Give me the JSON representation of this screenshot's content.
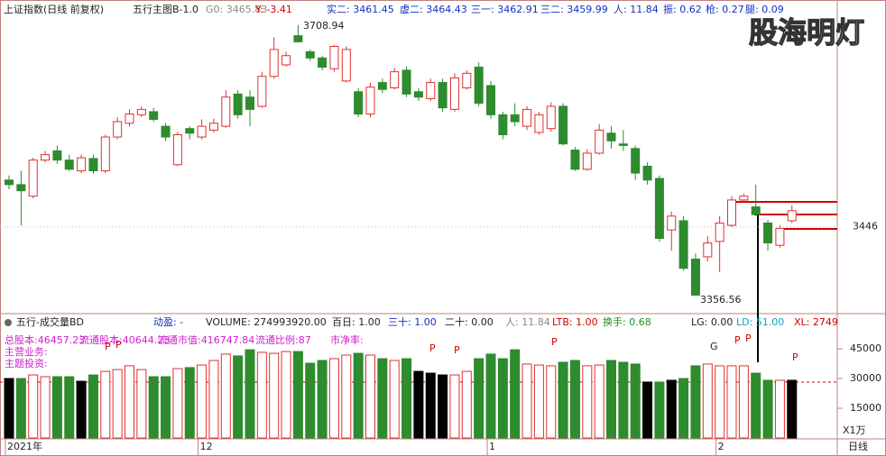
{
  "header": {
    "title": "上证指数(日线 前复权)",
    "indicator": "五行主图B-1.0",
    "fields": [
      "G0: 3465.83",
      "Y: -3.41",
      "实二: 3461.45",
      "虚二: 3464.43",
      "三一: 3462.91",
      "三二: 3459.99",
      "人: 11.84",
      "振: 0.62",
      "枪: 0.27",
      "腿: 0.09"
    ]
  },
  "watermark": "股海明灯",
  "volume_header": {
    "title": "五行-成交量BD",
    "fields": [
      "动盈: -",
      "VOLUME: 274993920.00",
      "百日: 1.00",
      "三十: 1.00",
      "二十: 0.00",
      "人: 11.84",
      "LTB: 1.00",
      "换手: 0.68",
      "LG: 0.00",
      "LD: 51.00",
      "XL: 2749"
    ]
  },
  "stock_info": [
    "总股本:46457.23",
    "流通股本:40644.23",
    "流通市值:416747.84",
    "流通比例:87",
    "市净率:",
    "主营业务:",
    "主题投资:"
  ],
  "markers": [
    "P",
    "P",
    "P",
    "P",
    "P",
    "G",
    "P",
    "P",
    "P"
  ],
  "period_label": "日线",
  "chart_data": [
    {
      "type": "candlestick",
      "annotations": [
        "3708.94",
        "3356.56"
      ],
      "categories": [
        "2021年",
        null,
        null,
        null,
        null,
        null,
        null,
        null,
        null,
        null,
        null,
        null,
        null,
        null,
        null,
        null,
        "12",
        null,
        null,
        null,
        null,
        null,
        null,
        null,
        null,
        null,
        null,
        null,
        null,
        null,
        null,
        null,
        null,
        null,
        null,
        null,
        null,
        null,
        null,
        null,
        "1",
        null,
        null,
        null,
        null,
        null,
        null,
        null,
        null,
        null,
        null,
        null,
        null,
        null,
        null,
        null,
        null,
        null,
        null,
        "2",
        null,
        null,
        null,
        null,
        null,
        null
      ],
      "open": [
        3507,
        3501,
        3486,
        3533,
        3545,
        3533,
        3519,
        3535,
        3519,
        3563,
        3581,
        3592,
        3596,
        3577,
        3527,
        3574,
        3563,
        3572,
        3577,
        3619,
        3615,
        3603,
        3642,
        3657,
        3695,
        3674,
        3666,
        3652,
        3636,
        3622,
        3593,
        3634,
        3627,
        3650,
        3622,
        3613,
        3634,
        3599,
        3627,
        3654,
        3630,
        3592,
        3592,
        3577,
        3569,
        3574,
        3603,
        3546,
        3521,
        3542,
        3568,
        3554,
        3548,
        3525,
        3509,
        3442,
        3454,
        3404,
        3407,
        3427,
        3448,
        3481,
        3472,
        3451,
        3422,
        3454
      ],
      "high": [
        3513,
        3519,
        3536,
        3545,
        3552,
        3540,
        3540,
        3540,
        3566,
        3589,
        3599,
        3603,
        3601,
        3581,
        3570,
        3577,
        3586,
        3587,
        3624,
        3624,
        3624,
        3648,
        3693,
        3674,
        3708.94,
        3677,
        3669,
        3683,
        3681,
        3627,
        3634,
        3639,
        3653,
        3655,
        3627,
        3639,
        3639,
        3646,
        3650,
        3660,
        3636,
        3596,
        3607,
        3603,
        3596,
        3608,
        3607,
        3550,
        3547,
        3580,
        3577,
        3572,
        3552,
        3530,
        3513,
        3466,
        3460,
        3411,
        3434,
        3460,
        3486,
        3489,
        3501,
        3455,
        3448,
        3474
      ],
      "low": [
        3495,
        3448,
        3483,
        3530,
        3528,
        3519,
        3516,
        3515,
        3516,
        3560,
        3577,
        3589,
        3583,
        3558,
        3525,
        3560,
        3560,
        3569,
        3575,
        3587,
        3577,
        3601,
        3639,
        3655,
        3686,
        3662,
        3650,
        3648,
        3634,
        3589,
        3589,
        3620,
        3625,
        3615,
        3610,
        3610,
        3596,
        3596,
        3625,
        3603,
        3587,
        3560,
        3577,
        3572,
        3566,
        3570,
        3552,
        3519,
        3519,
        3540,
        3548,
        3545,
        3507,
        3501,
        3427,
        3415,
        3389,
        3356.56,
        3401,
        3387,
        3446,
        3478,
        3460,
        3415,
        3419,
        3451
      ],
      "close": [
        3501,
        3493,
        3533,
        3540,
        3533,
        3521,
        3536,
        3519,
        3563,
        3583,
        3593,
        3599,
        3586,
        3563,
        3566,
        3568,
        3577,
        3581,
        3615,
        3592,
        3599,
        3642,
        3677,
        3669,
        3687,
        3666,
        3654,
        3681,
        3677,
        3593,
        3628,
        3625,
        3648,
        3619,
        3615,
        3634,
        3601,
        3640,
        3646,
        3607,
        3592,
        3566,
        3583,
        3599,
        3592,
        3603,
        3554,
        3521,
        3542,
        3572,
        3558,
        3552,
        3516,
        3507,
        3431,
        3460,
        3392,
        3357,
        3425,
        3451,
        3481,
        3486,
        3462,
        3425,
        3444,
        3467
      ],
      "up_color": "#e03030",
      "down_color": "#2e8b2e",
      "ylim": [
        3333,
        3718
      ],
      "yticks": [
        3446
      ]
    },
    {
      "type": "bar",
      "unit_label": "X1万",
      "values": [
        30000,
        30000,
        31800,
        30900,
        30900,
        30900,
        28600,
        31800,
        33600,
        34500,
        36400,
        34500,
        30900,
        30900,
        35000,
        35500,
        36800,
        39100,
        42300,
        41400,
        44500,
        43200,
        42700,
        43600,
        43600,
        37700,
        39100,
        40000,
        41800,
        42700,
        41800,
        40000,
        39100,
        40000,
        33600,
        32700,
        31800,
        31800,
        33600,
        40000,
        42300,
        40000,
        44500,
        37300,
        36800,
        36400,
        38200,
        39100,
        36400,
        36800,
        39100,
        38200,
        37300,
        28200,
        28200,
        29100,
        30000,
        36400,
        37300,
        36400,
        36400,
        36400,
        32700,
        29100,
        29100,
        29100
      ],
      "colors": [
        "#000000",
        "#2e8b2e",
        "#e03030",
        "#e03030",
        "#2e8b2e",
        "#2e8b2e",
        "#000000",
        "#2e8b2e",
        "#e03030",
        "#e03030",
        "#e03030",
        "#e03030",
        "#2e8b2e",
        "#2e8b2e",
        "#e03030",
        "#2e8b2e",
        "#e03030",
        "#e03030",
        "#e03030",
        "#2e8b2e",
        "#2e8b2e",
        "#e03030",
        "#e03030",
        "#e03030",
        "#2e8b2e",
        "#2e8b2e",
        "#2e8b2e",
        "#e03030",
        "#e03030",
        "#2e8b2e",
        "#e03030",
        "#2e8b2e",
        "#e03030",
        "#2e8b2e",
        "#000000",
        "#000000",
        "#000000",
        "#e03030",
        "#e03030",
        "#2e8b2e",
        "#2e8b2e",
        "#2e8b2e",
        "#2e8b2e",
        "#e03030",
        "#e03030",
        "#e03030",
        "#2e8b2e",
        "#2e8b2e",
        "#e03030",
        "#e03030",
        "#2e8b2e",
        "#2e8b2e",
        "#2e8b2e",
        "#000000",
        "#2e8b2e",
        "#000000",
        "#2e8b2e",
        "#2e8b2e",
        "#e03030",
        "#e03030",
        "#e03030",
        "#e03030",
        "#2e8b2e",
        "#2e8b2e",
        "#e03030",
        "#000000"
      ],
      "ylim": [
        0,
        50000
      ],
      "yticks": [
        15000,
        30000,
        45000
      ]
    }
  ]
}
